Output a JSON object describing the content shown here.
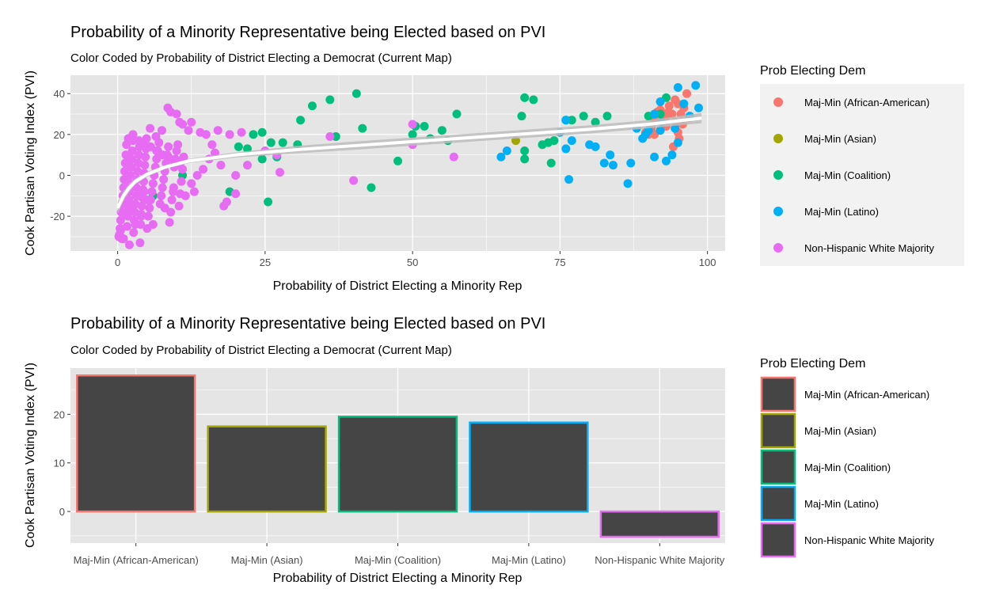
{
  "colors": {
    "panel_bg": "#e5e5e5",
    "grid_major": "#ffffff",
    "bar_fill": "#454545",
    "smooth_line": "#ffffff",
    "smooth_band": "#bdbdbd",
    "legend_bg": "#f2f2f2"
  },
  "legend": {
    "title": "Prob Electing Dem",
    "items": [
      {
        "label": "Maj-Min (African-American)",
        "color": "#F8766D"
      },
      {
        "label": "Maj-Min (Asian)",
        "color": "#A3A500"
      },
      {
        "label": "Maj-Min (Coalition)",
        "color": "#00BF7D"
      },
      {
        "label": "Maj-Min (Latino)",
        "color": "#00B0F6"
      },
      {
        "label": "Non-Hispanic White Majority",
        "color": "#E76BF3"
      }
    ]
  },
  "chart_data": [
    {
      "type": "scatter",
      "title": "Probability of a Minority Representative being Elected based on PVI",
      "subtitle": "Color Coded by Probability of District Electing a Democrat (Current Map)",
      "xlabel": "Probability of District Electing a Minority Rep",
      "ylabel": "Cook Partisan Voting Index (PVI)",
      "xlim": [
        -8,
        103
      ],
      "ylim": [
        -37,
        49
      ],
      "xticks": [
        0,
        25,
        50,
        75,
        100
      ],
      "xtick_labels": [
        "0",
        "25",
        "50",
        "75",
        "100"
      ],
      "yticks": [
        -20,
        0,
        20,
        40
      ],
      "ytick_labels": [
        "-20",
        "0",
        "20",
        "40"
      ],
      "grid": true,
      "legend_position": "right",
      "smooth": {
        "x": [
          0,
          1,
          2,
          3,
          5,
          8,
          12,
          20,
          30,
          40,
          50,
          60,
          70,
          80,
          90,
          99
        ],
        "y": [
          -16,
          -10,
          -6,
          -3,
          0.5,
          4,
          7,
          10,
          12.5,
          14.5,
          16.5,
          18.5,
          20.5,
          22.5,
          25,
          28
        ],
        "band": [
          3,
          2.5,
          2,
          1.5,
          1.2,
          1,
          1,
          1.3,
          1.8,
          2,
          2,
          2,
          2,
          2,
          2,
          2.5
        ]
      },
      "series": [
        {
          "name": "Maj-Min (African-American)",
          "points": [
            [
              89.5,
              21
            ],
            [
              90,
              20
            ],
            [
              90.5,
              23
            ],
            [
              91,
              27
            ],
            [
              91.5,
              31
            ],
            [
              91,
              20
            ],
            [
              92,
              32
            ],
            [
              92.5,
              25
            ],
            [
              93,
              29
            ],
            [
              93.5,
              34
            ],
            [
              93,
              24
            ],
            [
              94,
              30
            ],
            [
              94.5,
              37
            ],
            [
              94.2,
              14
            ],
            [
              95,
              35
            ],
            [
              95.5,
              30
            ],
            [
              95,
              21
            ],
            [
              96,
              33
            ],
            [
              96.5,
              40
            ],
            [
              96.8,
              28
            ],
            [
              95.8,
              25
            ],
            [
              92.8,
              30
            ],
            [
              94.6,
              26
            ],
            [
              93.4,
              31
            ],
            [
              95.2,
              18
            ]
          ]
        },
        {
          "name": "Maj-Min (Asian)",
          "points": [
            [
              67.5,
              17
            ]
          ]
        },
        {
          "name": "Maj-Min (Coalition)",
          "points": [
            [
              6,
              -10
            ],
            [
              11,
              0
            ],
            [
              19,
              -8
            ],
            [
              20.5,
              14
            ],
            [
              22,
              13
            ],
            [
              23,
              20
            ],
            [
              24.5,
              21
            ],
            [
              24.5,
              8
            ],
            [
              25.5,
              -13
            ],
            [
              26,
              16
            ],
            [
              27,
              9
            ],
            [
              28,
              16
            ],
            [
              30.5,
              15
            ],
            [
              31,
              27
            ],
            [
              33,
              34
            ],
            [
              36,
              37
            ],
            [
              37,
              19
            ],
            [
              40.5,
              40
            ],
            [
              41.5,
              23
            ],
            [
              43,
              -6
            ],
            [
              47.5,
              7
            ],
            [
              50,
              20
            ],
            [
              52,
              24
            ],
            [
              53,
              18
            ],
            [
              55,
              22
            ],
            [
              56,
              17
            ],
            [
              57.5,
              30
            ],
            [
              68.5,
              29
            ],
            [
              69,
              38
            ],
            [
              69,
              12
            ],
            [
              69,
              8
            ],
            [
              70.5,
              37
            ],
            [
              72,
              15
            ],
            [
              73,
              16
            ],
            [
              73.5,
              6
            ],
            [
              74,
              17
            ],
            [
              76,
              27
            ],
            [
              77,
              27
            ],
            [
              79,
              29
            ],
            [
              81,
              26
            ],
            [
              83,
              29
            ],
            [
              90,
              29
            ],
            [
              92,
              30
            ],
            [
              93,
              38
            ],
            [
              50.5,
              24
            ]
          ]
        },
        {
          "name": "Maj-Min (Latino)",
          "points": [
            [
              65,
              9
            ],
            [
              66,
              12
            ],
            [
              75,
              21
            ],
            [
              76,
              27
            ],
            [
              76,
              13
            ],
            [
              76.5,
              -2
            ],
            [
              77,
              17
            ],
            [
              80,
              15
            ],
            [
              81,
              14
            ],
            [
              82.5,
              6
            ],
            [
              83.5,
              10
            ],
            [
              84,
              5
            ],
            [
              86.5,
              -4
            ],
            [
              87,
              6
            ],
            [
              88,
              23
            ],
            [
              89,
              18
            ],
            [
              90,
              22
            ],
            [
              91,
              30
            ],
            [
              92,
              22
            ],
            [
              91,
              9
            ],
            [
              92,
              36
            ],
            [
              93,
              7
            ],
            [
              94,
              10
            ],
            [
              94.5,
              23
            ],
            [
              95,
              43
            ],
            [
              95,
              16
            ],
            [
              96,
              35
            ],
            [
              97,
              29
            ],
            [
              98,
              44
            ],
            [
              98.5,
              33
            ],
            [
              89.5,
              20
            ],
            [
              92.2,
              26
            ]
          ]
        },
        {
          "name": "Non-Hispanic White Majority",
          "points": [
            [
              0.2,
              -30
            ],
            [
              0.3,
              -29
            ],
            [
              0.4,
              -26
            ],
            [
              0.5,
              -22
            ],
            [
              0.6,
              -18
            ],
            [
              0.7,
              -31
            ],
            [
              0.8,
              -14
            ],
            [
              0.9,
              -10
            ],
            [
              1,
              -6
            ],
            [
              1.1,
              -2
            ],
            [
              1.2,
              2
            ],
            [
              1.3,
              6
            ],
            [
              1.4,
              10
            ],
            [
              1.5,
              15
            ],
            [
              1.6,
              -25
            ],
            [
              1.7,
              -20
            ],
            [
              1.8,
              -16
            ],
            [
              1.9,
              -12
            ],
            [
              2,
              -8
            ],
            [
              2.1,
              -4
            ],
            [
              2.2,
              0
            ],
            [
              2.3,
              4
            ],
            [
              2.4,
              8
            ],
            [
              2.5,
              12
            ],
            [
              2.6,
              17
            ],
            [
              2.7,
              -28
            ],
            [
              2.8,
              -22
            ],
            [
              2.9,
              -18
            ],
            [
              3,
              -14
            ],
            [
              3.1,
              -10
            ],
            [
              3.2,
              -6
            ],
            [
              3.3,
              -2
            ],
            [
              3.4,
              2
            ],
            [
              3.5,
              6
            ],
            [
              3.6,
              10
            ],
            [
              3.7,
              14
            ],
            [
              3.8,
              -33
            ],
            [
              3.9,
              -24
            ],
            [
              4,
              -19
            ],
            [
              4.1,
              -15
            ],
            [
              4.2,
              -11
            ],
            [
              4.3,
              -7
            ],
            [
              4.4,
              -3
            ],
            [
              4.5,
              1
            ],
            [
              4.6,
              5
            ],
            [
              4.7,
              9
            ],
            [
              4.8,
              13
            ],
            [
              4.9,
              18
            ],
            [
              5,
              -26
            ],
            [
              5.2,
              -20
            ],
            [
              5.4,
              -16
            ],
            [
              5.6,
              -12
            ],
            [
              5.8,
              -8
            ],
            [
              6,
              -4
            ],
            [
              6.2,
              0
            ],
            [
              6.4,
              4
            ],
            [
              6.6,
              8
            ],
            [
              6.8,
              12
            ],
            [
              7,
              16
            ],
            [
              7.2,
              -14
            ],
            [
              7.4,
              -10
            ],
            [
              7.6,
              -6
            ],
            [
              7.8,
              -2
            ],
            [
              8,
              2
            ],
            [
              8.2,
              6
            ],
            [
              8.4,
              10
            ],
            [
              8.6,
              14
            ],
            [
              8.8,
              -23
            ],
            [
              9,
              -18
            ],
            [
              9.2,
              -12
            ],
            [
              9.4,
              -8
            ],
            [
              9.6,
              4
            ],
            [
              9.8,
              8
            ],
            [
              10,
              12
            ],
            [
              10.2,
              15
            ],
            [
              10.4,
              -15
            ],
            [
              10.6,
              -9
            ],
            [
              10.8,
              -3
            ],
            [
              11,
              3
            ],
            [
              11.2,
              9
            ],
            [
              12,
              22
            ],
            [
              12.5,
              26
            ],
            [
              13,
              -8
            ],
            [
              14,
              21
            ],
            [
              15,
              20
            ],
            [
              16,
              15
            ],
            [
              17,
              22
            ],
            [
              18,
              -15
            ],
            [
              18.5,
              -13
            ],
            [
              19,
              20
            ],
            [
              20,
              -9
            ],
            [
              21,
              21
            ],
            [
              8.5,
              33
            ],
            [
              9,
              31
            ],
            [
              10,
              30
            ],
            [
              10.5,
              26
            ],
            [
              11,
              25
            ],
            [
              7.5,
              22
            ],
            [
              6.5,
              19
            ],
            [
              5.5,
              23
            ],
            [
              13.5,
              0
            ],
            [
              14.5,
              3
            ],
            [
              15.5,
              8
            ],
            [
              16.5,
              11
            ],
            [
              17.5,
              5
            ],
            [
              20,
              0
            ],
            [
              22,
              5
            ],
            [
              25,
              12
            ],
            [
              27,
              10
            ],
            [
              27.5,
              1.5
            ],
            [
              36,
              19
            ],
            [
              40,
              -2.5
            ],
            [
              50,
              25
            ],
            [
              50,
              15
            ],
            [
              57,
              9
            ],
            [
              2,
              -34
            ],
            [
              1,
              -31
            ],
            [
              3,
              -24
            ],
            [
              4,
              -20
            ],
            [
              5,
              -12
            ],
            [
              0.5,
              -27
            ],
            [
              1.5,
              -19
            ],
            [
              2.5,
              -15
            ],
            [
              3.5,
              -10
            ],
            [
              4.5,
              -8
            ],
            [
              6,
              -24
            ],
            [
              8,
              -16
            ],
            [
              9.5,
              -6
            ],
            [
              11.5,
              -10
            ],
            [
              12.5,
              -4
            ],
            [
              1.8,
              18
            ],
            [
              2.6,
              20
            ],
            [
              3.6,
              17
            ],
            [
              4.6,
              16
            ],
            [
              5.6,
              14
            ],
            [
              6.6,
              12
            ],
            [
              7.6,
              10
            ],
            [
              8.6,
              9
            ],
            [
              9.6,
              7
            ],
            [
              10.6,
              6
            ]
          ]
        }
      ]
    },
    {
      "type": "bar",
      "title": "Probability of a Minority Representative being Elected based on PVI",
      "subtitle": "Color Coded by Probability of District Electing a Democrat (Current Map)",
      "xlabel": "Probability of District Electing a Minority Rep",
      "ylabel": "Cook Partisan Voting Index (PVI)",
      "categories": [
        "Maj-Min (African-American)",
        "Maj-Min (Asian)",
        "Maj-Min (Coalition)",
        "Maj-Min (Latino)",
        "Non-Hispanic White Majority"
      ],
      "values": [
        28,
        17.5,
        19.5,
        18.3,
        -5.2
      ],
      "ylim": [
        -6.5,
        29.5
      ],
      "yticks": [
        0,
        10,
        20
      ],
      "ytick_labels": [
        "0",
        "10",
        "20"
      ],
      "grid": true,
      "legend_position": "right"
    }
  ]
}
